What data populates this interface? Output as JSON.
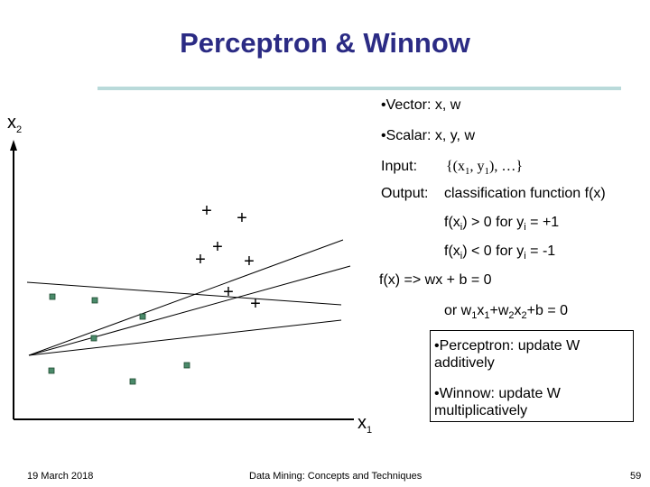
{
  "title": "Perceptron & Winnow",
  "axes": {
    "y_label": "x",
    "y_sub": "2",
    "x_label": "x",
    "x_sub": "1"
  },
  "bullets": {
    "vector": "Vector: x, w",
    "scalar": "Scalar: x, y, w"
  },
  "input_line": {
    "label": "Input:",
    "value_pre": "{(x",
    "s1": "1",
    "mid": ", y",
    "s2": "1",
    "post": "), …}"
  },
  "output_line": {
    "label": "Output:",
    "value": "classification function f(x)"
  },
  "rule1": {
    "a": "f(x",
    "s": "i",
    "b": ") > 0 for y",
    "s2": "i",
    "c": " = +1"
  },
  "rule2": {
    "a": "f(x",
    "s": "i",
    "b": ") < 0 for y",
    "s2": "i",
    "c": " = -1"
  },
  "eq1": "f(x) => wx + b = 0",
  "eq2": {
    "a": "or w",
    "s1": "1",
    "b": "x",
    "s2": "1",
    "c": "+w",
    "s3": "2",
    "d": "x",
    "s4": "2",
    "e": "+b = 0"
  },
  "box": {
    "perceptron": "Perceptron: update W additively",
    "winnow": "Winnow: update W multiplicatively"
  },
  "footer": {
    "date": "19 March 2018",
    "center": "Data Mining: Concepts and Techniques",
    "page": "59"
  },
  "markers": {
    "plus_glyph": "+",
    "plus_color": "#000000",
    "square_color": "#4a8a6a"
  }
}
